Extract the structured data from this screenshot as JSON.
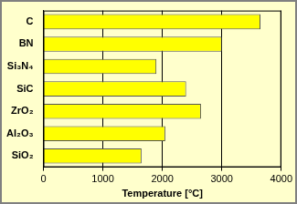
{
  "chart_data": {
    "type": "bar",
    "orientation": "horizontal",
    "x_label": "Temperature [°C]",
    "categories": [
      "C",
      "BN",
      "Si₃N₄",
      "SiC",
      "ZrO₂",
      "Al₂O₃",
      "SiO₂"
    ],
    "values": [
      3650,
      3000,
      1900,
      2400,
      2650,
      2050,
      1650
    ],
    "color": "#ffff00",
    "xlim": [
      0,
      4000
    ],
    "xticks": [
      0,
      1000,
      2000,
      3000,
      4000
    ],
    "grid": true
  }
}
